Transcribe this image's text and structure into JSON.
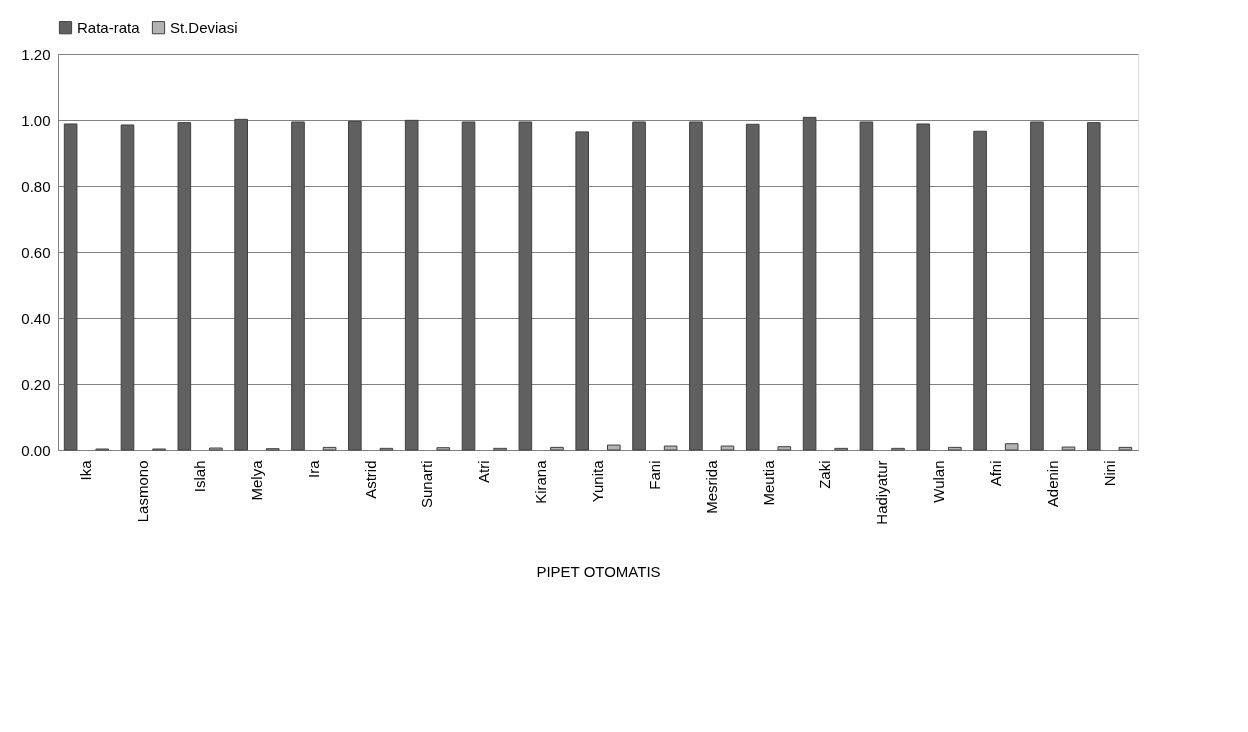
{
  "chart_data": {
    "type": "bar",
    "xlabel": "PIPET OTOMATIS",
    "categories": [
      "Ika",
      "Lasmono",
      "Islah",
      "Melya",
      "Ira",
      "Astrid",
      "Sunarti",
      "Atri",
      "Kirana",
      "Yunita",
      "Fani",
      "Mesrida",
      "Meutia",
      "Zaki",
      "Hadiyatur",
      "Wulan",
      "Afni",
      "Adenin",
      "Nini"
    ],
    "series": [
      {
        "name": "Rata-rata",
        "color": "#606060",
        "values": [
          0.988,
          0.985,
          0.992,
          1.002,
          0.994,
          0.996,
          0.999,
          0.994,
          0.994,
          0.964,
          0.994,
          0.994,
          0.987,
          1.008,
          0.994,
          0.988,
          0.966,
          0.994,
          0.992
        ]
      },
      {
        "name": "St.Deviasi",
        "color": "#b3b3b3",
        "values": [
          0.003,
          0.003,
          0.006,
          0.004,
          0.008,
          0.005,
          0.007,
          0.005,
          0.008,
          0.015,
          0.012,
          0.012,
          0.01,
          0.005,
          0.005,
          0.008,
          0.019,
          0.009,
          0.008
        ]
      }
    ],
    "ylim": [
      0,
      1.2
    ],
    "yticks": [
      {
        "value": 0,
        "label": "0.00"
      },
      {
        "value": 0.2,
        "label": "0.20"
      },
      {
        "value": 0.4,
        "label": "0.40"
      },
      {
        "value": 0.6,
        "label": "0.60"
      },
      {
        "value": 0.8,
        "label": "0.80"
      },
      {
        "value": 1.0,
        "label": "1.00"
      },
      {
        "value": 1.2,
        "label": "1.20"
      }
    ],
    "grid": "y",
    "legend": "top"
  }
}
